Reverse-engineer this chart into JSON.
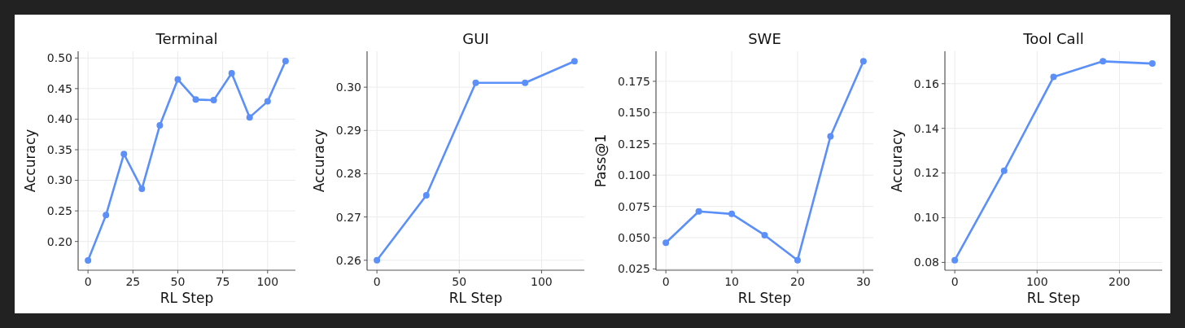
{
  "chart_data": [
    {
      "type": "line",
      "title": "Terminal",
      "xlabel": "RL Step",
      "ylabel": "Accuracy",
      "x": [
        0,
        10,
        20,
        30,
        40,
        50,
        60,
        70,
        80,
        90,
        100,
        110
      ],
      "values": [
        0.169,
        0.243,
        0.343,
        0.286,
        0.39,
        0.465,
        0.432,
        0.431,
        0.475,
        0.403,
        0.429,
        0.495
      ],
      "color": "#5b8ff9",
      "xlim": [
        -5.5,
        115.5
      ],
      "ylim": [
        0.153,
        0.511
      ],
      "xticks": [
        0,
        25,
        50,
        75,
        100
      ],
      "yticks": [
        {
          "value": 0.2,
          "label": "0.20"
        },
        0.25,
        {
          "value": 0.3,
          "label": "0.30"
        },
        0.35,
        {
          "value": 0.4,
          "label": "0.40"
        },
        0.45,
        {
          "value": 0.5,
          "label": "0.50"
        }
      ],
      "grid": true,
      "marker": "circle"
    },
    {
      "type": "line",
      "title": "GUI",
      "xlabel": "RL Step",
      "ylabel": "Accuracy",
      "x": [
        0,
        30,
        60,
        90,
        120
      ],
      "values": [
        0.26,
        0.275,
        0.301,
        0.301,
        0.306
      ],
      "color": "#5b8ff9",
      "xlim": [
        -6,
        126
      ],
      "ylim": [
        0.2577,
        0.3083
      ],
      "xticks": [
        0,
        50,
        100
      ],
      "yticks": [
        0.26,
        0.27,
        0.28,
        0.29,
        {
          "value": 0.3,
          "label": "0.30"
        }
      ],
      "grid": true,
      "marker": "circle"
    },
    {
      "type": "line",
      "title": "SWE",
      "xlabel": "RL Step",
      "ylabel": "Pass@1",
      "x": [
        0,
        5,
        10,
        15,
        20,
        25,
        30
      ],
      "values": [
        0.046,
        0.071,
        0.069,
        0.052,
        0.032,
        0.131,
        0.191
      ],
      "color": "#5b8ff9",
      "xlim": [
        -1.5,
        31.5
      ],
      "ylim": [
        0.024,
        0.199
      ],
      "xticks": [
        0,
        10,
        20,
        30
      ],
      "yticks": [
        0.025,
        {
          "value": 0.05,
          "label": "0.050"
        },
        0.075,
        {
          "value": 0.1,
          "label": "0.100"
        },
        0.125,
        {
          "value": 0.15,
          "label": "0.150"
        },
        0.175
      ],
      "grid": true,
      "marker": "circle"
    },
    {
      "type": "line",
      "title": "Tool Call",
      "xlabel": "RL Step",
      "ylabel": "Accuracy",
      "x": [
        0,
        60,
        120,
        180,
        240
      ],
      "values": [
        0.081,
        0.121,
        0.163,
        0.17,
        0.169
      ],
      "color": "#5b8ff9",
      "xlim": [
        -12,
        252
      ],
      "ylim": [
        0.0765,
        0.1745
      ],
      "xticks": [
        0,
        100,
        200
      ],
      "yticks": [
        0.08,
        {
          "value": 0.1,
          "label": "0.10"
        },
        0.12,
        0.14,
        0.16
      ],
      "grid": true,
      "marker": "circle"
    }
  ]
}
